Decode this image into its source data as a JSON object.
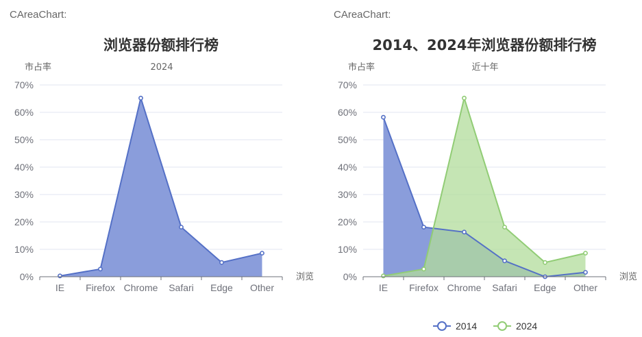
{
  "widgets": [
    {
      "label": "CAreaChart:"
    },
    {
      "label": "CAreaChart:"
    }
  ],
  "chart_data": [
    {
      "type": "area",
      "title": "浏览器份额排行榜",
      "subtitle": "2024",
      "ylabel": "市占率",
      "xlabel": "浏览",
      "categories": [
        "IE",
        "Firefox",
        "Chrome",
        "Safari",
        "Edge",
        "Other"
      ],
      "ylim": [
        0,
        70
      ],
      "y_ticks": [
        "0%",
        "10%",
        "20%",
        "30%",
        "40%",
        "50%",
        "60%",
        "70%"
      ],
      "grid": true,
      "series": [
        {
          "name": "2024",
          "values": [
            0.3,
            2.8,
            65.2,
            18.1,
            5.2,
            8.6
          ],
          "color": "#5470c6",
          "fill": "#8a9ddb"
        }
      ]
    },
    {
      "type": "area",
      "title": "2014、2024年浏览器份额排行榜",
      "subtitle": "近十年",
      "ylabel": "市占率",
      "xlabel": "浏览",
      "categories": [
        "IE",
        "Firefox",
        "Chrome",
        "Safari",
        "Edge",
        "Other"
      ],
      "ylim": [
        0,
        70
      ],
      "y_ticks": [
        "0%",
        "10%",
        "20%",
        "30%",
        "40%",
        "50%",
        "60%",
        "70%"
      ],
      "grid": true,
      "legend": "bottom",
      "series": [
        {
          "name": "2014",
          "values": [
            58.2,
            18.1,
            16.3,
            5.8,
            0,
            1.6
          ],
          "color": "#5470c6",
          "fill": "#8a9ddb"
        },
        {
          "name": "2024",
          "values": [
            0.3,
            2.8,
            65.2,
            18.1,
            5.2,
            8.6
          ],
          "color": "#91cc75",
          "fill": "#b2dc9b"
        }
      ]
    }
  ]
}
